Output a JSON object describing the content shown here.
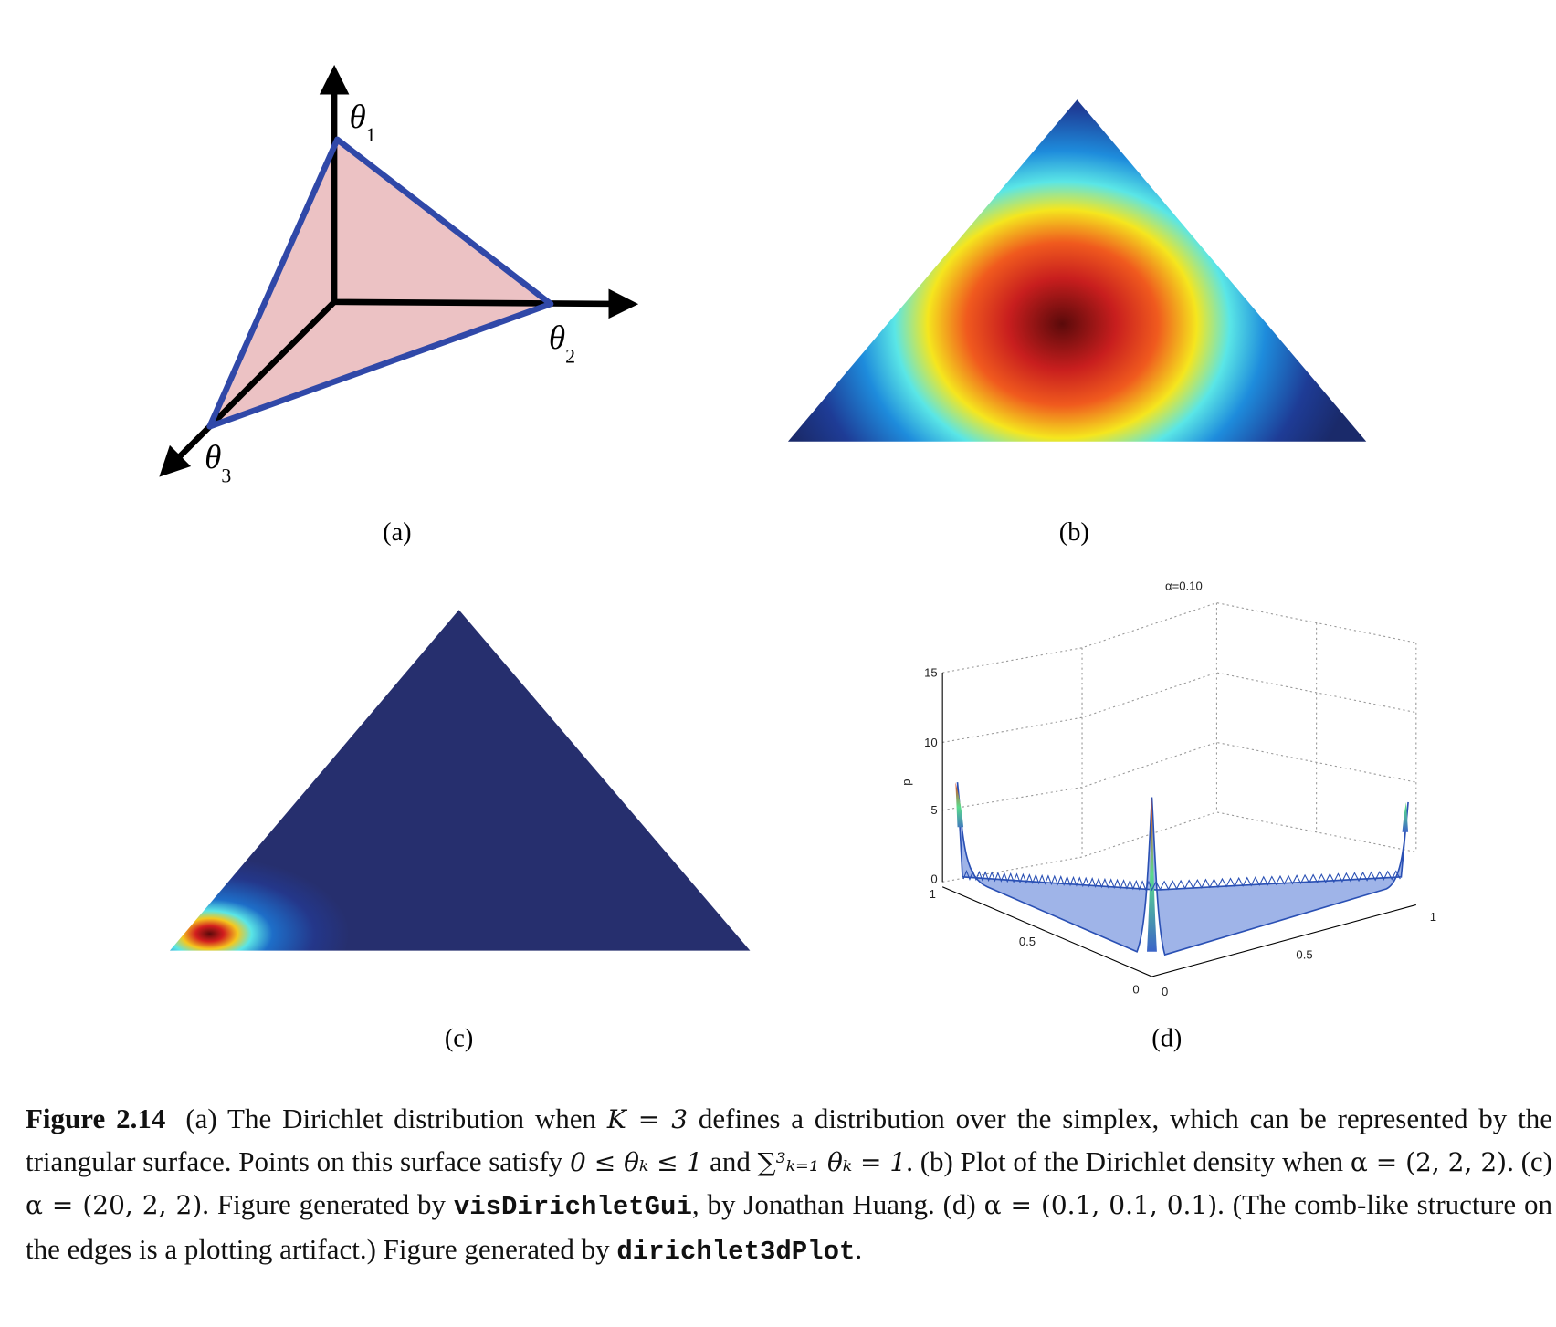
{
  "figure": {
    "panels": {
      "a": {
        "label": "(a)",
        "axes": [
          {
            "symbol": "θ",
            "subscript": "1"
          },
          {
            "symbol": "θ",
            "subscript": "2"
          },
          {
            "symbol": "θ",
            "subscript": "3"
          }
        ]
      },
      "b": {
        "label": "(b)"
      },
      "c": {
        "label": "(c)"
      },
      "d": {
        "label": "(d)",
        "title": "α=0.10",
        "z_axis_label": "p",
        "z_ticks": [
          "15",
          "10",
          "5",
          "0"
        ],
        "left_axis_ticks": [
          "1",
          "0.5",
          "0"
        ],
        "right_axis_ticks": [
          "0",
          "0.5",
          "1"
        ]
      }
    },
    "caption": {
      "label": "Figure 2.14",
      "parts": [
        "(a) The Dirichlet distribution when ",
        "K = 3",
        " defines a distribution over the simplex, which can be represented by the triangular surface. Points on this surface satisfy ",
        "0 ≤ θₖ ≤ 1",
        " and ",
        "∑³ₖ₌₁ θₖ = 1",
        ". (b) Plot of the Dirichlet density when ",
        "α = (2, 2, 2)",
        ". (c) ",
        "α = (20, 2, 2)",
        ". Figure generated by ",
        "visDirichletGui",
        ", by Jonathan Huang. (d) ",
        "α = (0.1, 0.1, 0.1)",
        ". (The comb-like structure on the edges is a plotting artifact.) Figure generated by ",
        "dirichlet3dPlot",
        "."
      ]
    }
  }
}
